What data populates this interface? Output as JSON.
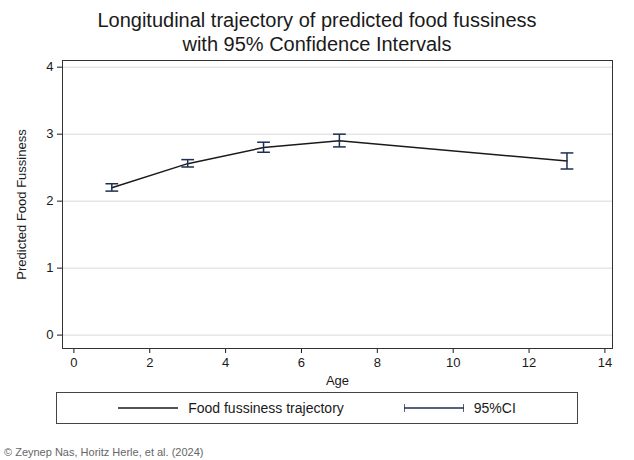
{
  "chart_data": {
    "type": "line",
    "title": "Longitudinal trajectory of predicted food fussiness",
    "subtitle": "with 95% Confidence Intervals",
    "x_label": "Age",
    "y_label": "Predicted Food Fussiness",
    "x": [
      1,
      3,
      5,
      7,
      13
    ],
    "series": [
      {
        "name": "Food fussiness trajectory",
        "color": "#1a1a1a",
        "values": [
          2.2,
          2.56,
          2.8,
          2.9,
          2.6
        ],
        "error_bars": {
          "name": "95%CI",
          "color": "#1c2f52",
          "lower": [
            2.15,
            2.51,
            2.73,
            2.81,
            2.48
          ],
          "upper": [
            2.26,
            2.62,
            2.88,
            3.0,
            2.72
          ]
        }
      }
    ],
    "xlim": [
      -0.3,
      14.2
    ],
    "xticks": [
      0,
      2,
      4,
      6,
      8,
      10,
      12,
      14
    ],
    "ylim": [
      -0.2,
      4.1
    ],
    "yticks": [
      0,
      1,
      2,
      3,
      4
    ],
    "grid": "y",
    "legend": "bottom",
    "source": "© Zeynep Nas, Horitz Herle, et al. (2024)"
  }
}
